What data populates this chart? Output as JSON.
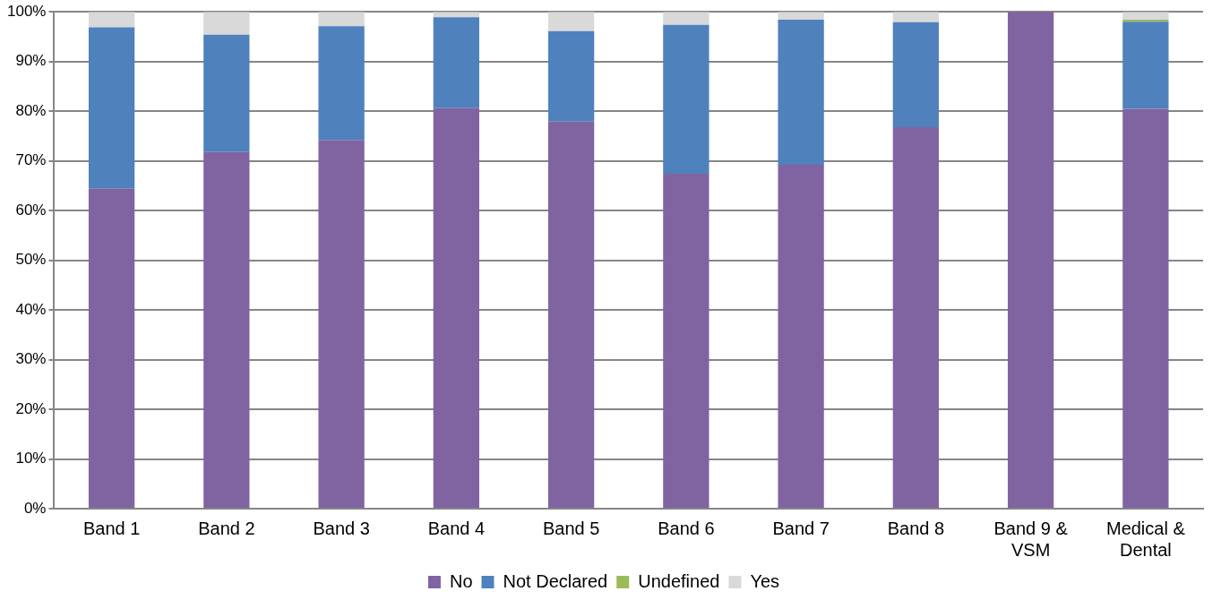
{
  "chart_data": {
    "type": "bar",
    "stacked": true,
    "categories": [
      "Band 1",
      "Band 2",
      "Band 3",
      "Band 4",
      "Band 5",
      "Band 6",
      "Band 7",
      "Band 8",
      "Band 9 & VSM",
      "Medical & Dental"
    ],
    "series": [
      {
        "name": "No",
        "color": "#8064a2",
        "values": [
          64.4,
          71.8,
          74.2,
          80.6,
          77.9,
          67.4,
          69.2,
          76.8,
          100,
          80.5
        ]
      },
      {
        "name": "Not Declared",
        "color": "#4f81bd",
        "values": [
          32.5,
          23.6,
          22.9,
          18.3,
          18.2,
          30.0,
          29.2,
          21.1,
          0,
          17.5
        ]
      },
      {
        "name": "Undefined",
        "color": "#9bbb59",
        "values": [
          0,
          0,
          0,
          0,
          0,
          0,
          0,
          0,
          0,
          0.4
        ]
      },
      {
        "name": "Yes",
        "color": "#d9d9d9",
        "values": [
          3.1,
          4.6,
          2.9,
          1.1,
          3.9,
          2.6,
          1.6,
          2.1,
          0,
          1.6
        ]
      }
    ],
    "ylim": [
      0,
      100
    ],
    "yticks": [
      {
        "value": 0,
        "label": "0%"
      },
      {
        "value": 10,
        "label": "10%"
      },
      {
        "value": 20,
        "label": "20%"
      },
      {
        "value": 30,
        "label": "30%"
      },
      {
        "value": 40,
        "label": "40%"
      },
      {
        "value": 50,
        "label": "50%"
      },
      {
        "value": 60,
        "label": "60%"
      },
      {
        "value": 70,
        "label": "70%"
      },
      {
        "value": 80,
        "label": "80%"
      },
      {
        "value": 90,
        "label": "90%"
      },
      {
        "value": 100,
        "label": "100%"
      }
    ],
    "grid": "y",
    "legend": "bottom"
  }
}
